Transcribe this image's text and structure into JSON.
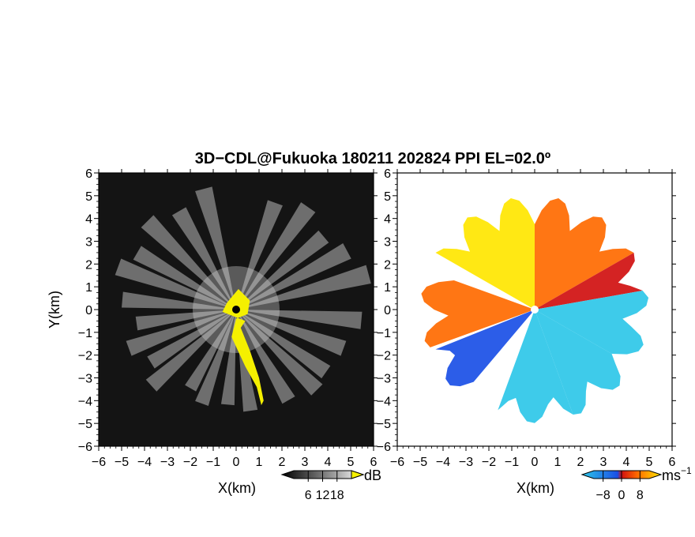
{
  "chart_data": [
    {
      "type": "heatmap",
      "title": "3D−CDL@Fukuoka 180211 202824 PPI EL=02.0º",
      "xlabel": "X(km)",
      "ylabel": "Y(km)",
      "xlim": [
        -6,
        6
      ],
      "ylim": [
        -6,
        6
      ],
      "xticks": [
        "−6",
        "−5",
        "−4",
        "−3",
        "−2",
        "−1",
        "0",
        "1",
        "2",
        "3",
        "4",
        "5",
        "6"
      ],
      "yticks": [
        "6",
        "5",
        "4",
        "3",
        "2",
        "1",
        "0",
        "−1",
        "−2",
        "−3",
        "−4",
        "−5",
        "−6"
      ],
      "variable": "backscatter intensity",
      "colorbar": {
        "unit": "dB",
        "ticks": [
          "6",
          "12",
          "18"
        ],
        "tick_values": [
          6,
          12,
          18
        ],
        "range": [
          0,
          24
        ]
      },
      "colors": {
        "background": "#141414",
        "beam": "#dcdcdc",
        "saturated": "#f5f000"
      },
      "beams_azimuth_deg": [
        20,
        35,
        50,
        62,
        75,
        95,
        110,
        125,
        135,
        150,
        172,
        185,
        200,
        210,
        228,
        238,
        250,
        262,
        275,
        290,
        300,
        315,
        330,
        345
      ],
      "beams_length_km": [
        5,
        5.5,
        5,
        5.5,
        6,
        5.5,
        5,
        4.8,
        5,
        4.6,
        4.5,
        4.2,
        4.4,
        4,
        5,
        4.4,
        5,
        4.4,
        5,
        5.5,
        5,
        5.5,
        5,
        5.5
      ]
    },
    {
      "type": "heatmap",
      "xlabel": "X(km)",
      "xlim": [
        -6,
        6
      ],
      "ylim": [
        -6,
        6
      ],
      "xticks": [
        "−6",
        "−5",
        "−4",
        "−3",
        "−2",
        "−1",
        "0",
        "1",
        "2",
        "3",
        "4",
        "5",
        "6"
      ],
      "yticks": [
        "6",
        "5",
        "4",
        "3",
        "2",
        "1",
        "0",
        "−1",
        "−2",
        "−3",
        "−4",
        "−5",
        "−6"
      ],
      "variable": "radial velocity",
      "colorbar": {
        "unit": "ms",
        "unit_exp": "−1",
        "ticks": [
          "−8",
          "0",
          "8"
        ],
        "tick_values": [
          -8,
          0,
          8
        ],
        "range": [
          -12,
          12
        ]
      },
      "colors": {
        "neg_far": "#2ec7e8",
        "neg": "#1a4fe6",
        "zero": "#d01010",
        "pos": "#ff6a00",
        "pos_far": "#ffe600"
      },
      "sectors_deg": [
        {
          "from": -60,
          "to": 0,
          "value": 7
        },
        {
          "from": 0,
          "to": 60,
          "value": 5
        },
        {
          "from": 60,
          "to": 80,
          "value": 1
        },
        {
          "from": 80,
          "to": 120,
          "value": -7
        },
        {
          "from": 120,
          "to": 160,
          "value": -8
        },
        {
          "from": 160,
          "to": 200,
          "value": -10
        },
        {
          "from": 220,
          "to": 250,
          "value": -6
        },
        {
          "from": 250,
          "to": 290,
          "value": 2
        }
      ]
    }
  ]
}
